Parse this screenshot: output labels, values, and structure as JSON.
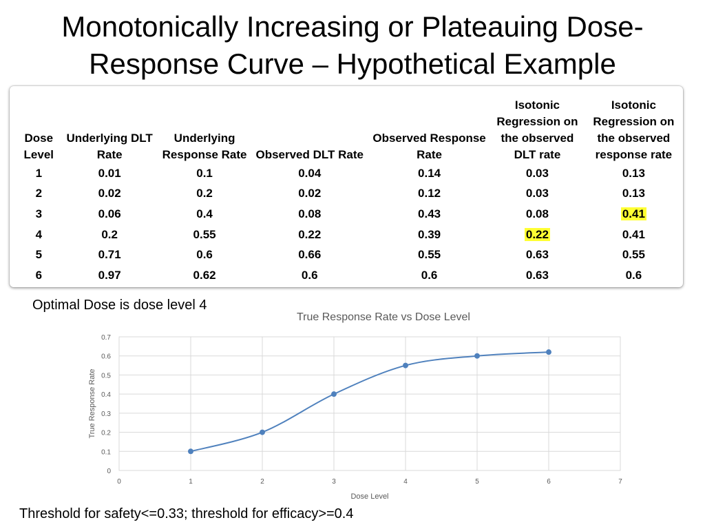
{
  "slide": {
    "title_line1": "Monotonically Increasing or Plateauing Dose-",
    "title_line2": "Response Curve – Hypothetical Example"
  },
  "table": {
    "headers": [
      [
        "Dose",
        "Level"
      ],
      [
        "Underlying DLT",
        "Rate"
      ],
      [
        "Underlying",
        "Response Rate"
      ],
      [
        "Observed DLT Rate"
      ],
      [
        "Observed Response",
        "Rate"
      ],
      [
        "Isotonic",
        "Regression on",
        "the observed",
        "DLT rate"
      ],
      [
        "Isotonic",
        "Regression on",
        "the observed",
        "response rate"
      ]
    ],
    "rows": [
      [
        "1",
        "0.01",
        "0.1",
        "0.04",
        "0.14",
        "0.03",
        "0.13"
      ],
      [
        "2",
        "0.02",
        "0.2",
        "0.02",
        "0.12",
        "0.03",
        "0.13"
      ],
      [
        "3",
        "0.06",
        "0.4",
        "0.08",
        "0.43",
        "0.08",
        "0.41"
      ],
      [
        "4",
        "0.2",
        "0.55",
        "0.22",
        "0.39",
        "0.22",
        "0.41"
      ],
      [
        "5",
        "0.71",
        "0.6",
        "0.66",
        "0.55",
        "0.63",
        "0.55"
      ],
      [
        "6",
        "0.97",
        "0.62",
        "0.6",
        "0.6",
        "0.63",
        "0.6"
      ]
    ],
    "highlighted_cells": [
      {
        "row": 2,
        "col": 6
      },
      {
        "row": 3,
        "col": 5
      }
    ],
    "highlight_color": "#ffff33"
  },
  "notes": {
    "optimal": "Optimal Dose is dose level 4",
    "threshold": "Threshold for safety<=0.33; threshold for efficacy>=0.4"
  },
  "chart_data": {
    "type": "line",
    "title": "True Response Rate vs Dose Level",
    "xlabel": "Dose Level",
    "ylabel": "True Response Rate",
    "x": [
      1,
      2,
      3,
      4,
      5,
      6
    ],
    "series": [
      {
        "values": [
          0.1,
          0.2,
          0.4,
          0.55,
          0.6,
          0.62
        ],
        "color": "#4f81bd",
        "smooth": true,
        "markers": true
      }
    ],
    "xlim": [
      0,
      7
    ],
    "ylim": [
      0,
      0.7
    ],
    "x_ticks": [
      "0",
      "1",
      "2",
      "3",
      "4",
      "5",
      "6",
      "7"
    ],
    "y_ticks": [
      "0",
      "0.1",
      "0.2",
      "0.3",
      "0.4",
      "0.5",
      "0.6",
      "0.7"
    ],
    "grid": true,
    "legend": "none"
  }
}
